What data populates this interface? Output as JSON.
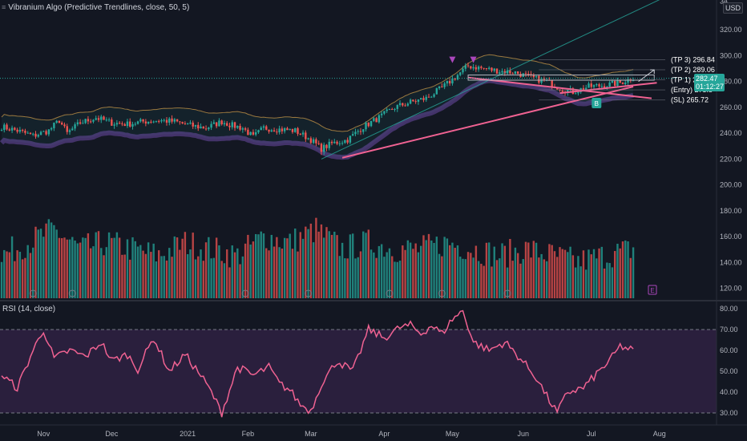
{
  "legend": {
    "icon": "collapse-icon",
    "indicator": "Vibranium Algo (Predictive Trendlines, close, 50, 5)"
  },
  "currency": "USD",
  "rsi_legend": "RSI (14, close)",
  "current_price": {
    "value": "282.47",
    "countdown": "01:12:27"
  },
  "colors": {
    "background": "#131722",
    "up": "#26a69a",
    "down": "#ef5350",
    "trendline": "#f06292",
    "rsi_line": "#f06292",
    "rsi_band": "#2a1f3d"
  },
  "chart_data": {
    "type": "candlestick",
    "x_axis_labels": [
      "Nov",
      "Dec",
      "2021",
      "Feb",
      "Mar",
      "Apr",
      "May",
      "Jun",
      "Jul",
      "Aug"
    ],
    "price_axis": {
      "ticks": [
        "320.00",
        "300.00",
        "280.00",
        "260.00",
        "240.00",
        "220.00",
        "200.00",
        "180.00",
        "160.00",
        "140.00",
        "120.00"
      ],
      "partial_top_label": "34"
    },
    "rsi_axis": {
      "ticks": [
        "80.00",
        "70.00",
        "60.00",
        "50.00",
        "40.00",
        "30.00"
      ],
      "overbought": 70,
      "oversold": 30
    },
    "levels": [
      {
        "label": "(TP 3)",
        "value": "296.84"
      },
      {
        "label": "(TP 2)",
        "value": "289.06"
      },
      {
        "label": "(TP 1)",
        "value": "281.28"
      },
      {
        "label": "(Entry)",
        "value": "273.5"
      },
      {
        "label": "(SL)",
        "value": "265.72"
      }
    ],
    "signal_label": "B",
    "event_marker_label": "E",
    "price_anchors": [
      [
        0,
        245
      ],
      [
        6,
        242
      ],
      [
        12,
        238
      ],
      [
        18,
        242
      ],
      [
        22,
        250
      ],
      [
        25,
        240
      ],
      [
        30,
        248
      ],
      [
        36,
        252
      ],
      [
        42,
        248
      ],
      [
        48,
        247
      ],
      [
        54,
        249
      ],
      [
        60,
        250
      ],
      [
        66,
        249
      ],
      [
        72,
        246
      ],
      [
        78,
        244
      ],
      [
        84,
        249
      ],
      [
        88,
        246
      ],
      [
        92,
        244
      ],
      [
        96,
        237
      ],
      [
        100,
        244
      ],
      [
        106,
        243
      ],
      [
        112,
        242
      ],
      [
        118,
        235
      ],
      [
        122,
        228
      ],
      [
        126,
        232
      ],
      [
        132,
        235
      ],
      [
        138,
        245
      ],
      [
        144,
        252
      ],
      [
        150,
        260
      ],
      [
        156,
        264
      ],
      [
        162,
        267
      ],
      [
        168,
        275
      ],
      [
        174,
        285
      ],
      [
        178,
        292
      ],
      [
        184,
        290
      ],
      [
        190,
        288
      ],
      [
        196,
        287
      ],
      [
        202,
        283
      ],
      [
        208,
        280
      ],
      [
        214,
        274
      ],
      [
        218,
        272
      ],
      [
        224,
        276
      ],
      [
        230,
        277
      ],
      [
        236,
        279
      ],
      [
        241,
        283
      ]
    ],
    "rsi_anchors": [
      [
        0,
        48
      ],
      [
        6,
        42
      ],
      [
        12,
        60
      ],
      [
        16,
        70
      ],
      [
        20,
        56
      ],
      [
        26,
        60
      ],
      [
        32,
        57
      ],
      [
        38,
        64
      ],
      [
        42,
        55
      ],
      [
        48,
        58
      ],
      [
        52,
        51
      ],
      [
        58,
        66
      ],
      [
        64,
        50
      ],
      [
        70,
        58
      ],
      [
        76,
        48
      ],
      [
        80,
        40
      ],
      [
        84,
        30
      ],
      [
        90,
        52
      ],
      [
        96,
        48
      ],
      [
        102,
        52
      ],
      [
        106,
        44
      ],
      [
        110,
        41
      ],
      [
        114,
        34
      ],
      [
        118,
        31
      ],
      [
        122,
        44
      ],
      [
        128,
        55
      ],
      [
        134,
        50
      ],
      [
        140,
        70
      ],
      [
        146,
        66
      ],
      [
        152,
        71
      ],
      [
        156,
        72
      ],
      [
        160,
        68
      ],
      [
        164,
        72
      ],
      [
        168,
        68
      ],
      [
        172,
        75
      ],
      [
        176,
        79
      ],
      [
        180,
        64
      ],
      [
        186,
        60
      ],
      [
        192,
        64
      ],
      [
        198,
        56
      ],
      [
        204,
        47
      ],
      [
        208,
        38
      ],
      [
        212,
        30
      ],
      [
        216,
        40
      ],
      [
        222,
        42
      ],
      [
        228,
        50
      ],
      [
        232,
        55
      ],
      [
        236,
        62
      ],
      [
        241,
        60
      ]
    ],
    "volume_anchors": [
      [
        0,
        140
      ],
      [
        10,
        150
      ],
      [
        20,
        160
      ],
      [
        30,
        145
      ],
      [
        40,
        150
      ],
      [
        50,
        145
      ],
      [
        60,
        140
      ],
      [
        70,
        150
      ],
      [
        80,
        145
      ],
      [
        90,
        140
      ],
      [
        100,
        155
      ],
      [
        110,
        150
      ],
      [
        120,
        160
      ],
      [
        130,
        145
      ],
      [
        140,
        150
      ],
      [
        150,
        145
      ],
      [
        160,
        145
      ],
      [
        170,
        150
      ],
      [
        180,
        145
      ],
      [
        190,
        140
      ],
      [
        200,
        145
      ],
      [
        210,
        140
      ],
      [
        220,
        135
      ],
      [
        230,
        140
      ],
      [
        241,
        145
      ]
    ]
  }
}
